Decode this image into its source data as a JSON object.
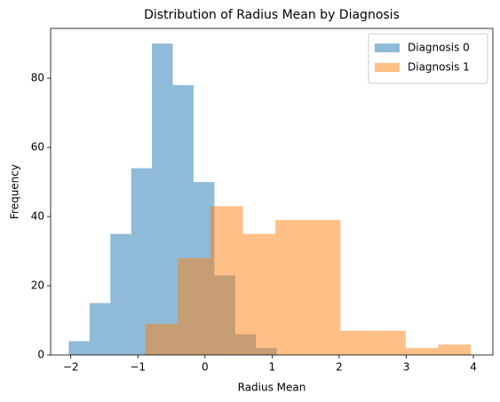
{
  "chart_data": {
    "type": "histogram",
    "title": "Distribution of Radius Mean by Diagnosis",
    "x_label": "Radius Mean",
    "y_label": "Frequency",
    "series": [
      {
        "name": "Diagnosis 0",
        "color": "#1f77b4",
        "bins": [
          -2.03,
          -1.72,
          -1.41,
          -1.1,
          -0.79,
          -0.48,
          -0.17,
          0.14,
          0.45,
          0.76,
          1.07
        ],
        "values": [
          4,
          15,
          35,
          54,
          90,
          78,
          50,
          23,
          6,
          2
        ]
      },
      {
        "name": "Diagnosis 1",
        "color": "#ff7f0e",
        "bins": [
          -0.89,
          -0.405,
          0.08,
          0.565,
          1.05,
          1.535,
          2.02,
          2.505,
          2.99,
          3.475,
          3.96
        ],
        "values": [
          9,
          28,
          43,
          35,
          39,
          39,
          7,
          7,
          2,
          3
        ]
      }
    ],
    "opacity": 0.5,
    "xlim": [
      -2.3,
      4.29
    ],
    "xticks": [
      {
        "value": -2,
        "label": "−2"
      },
      {
        "value": -1,
        "label": "−1"
      },
      0,
      1,
      2,
      3,
      4
    ],
    "ylim": [
      0,
      94.4
    ],
    "yticks": [
      0,
      20,
      40,
      60,
      80
    ],
    "legend": "upper right"
  }
}
